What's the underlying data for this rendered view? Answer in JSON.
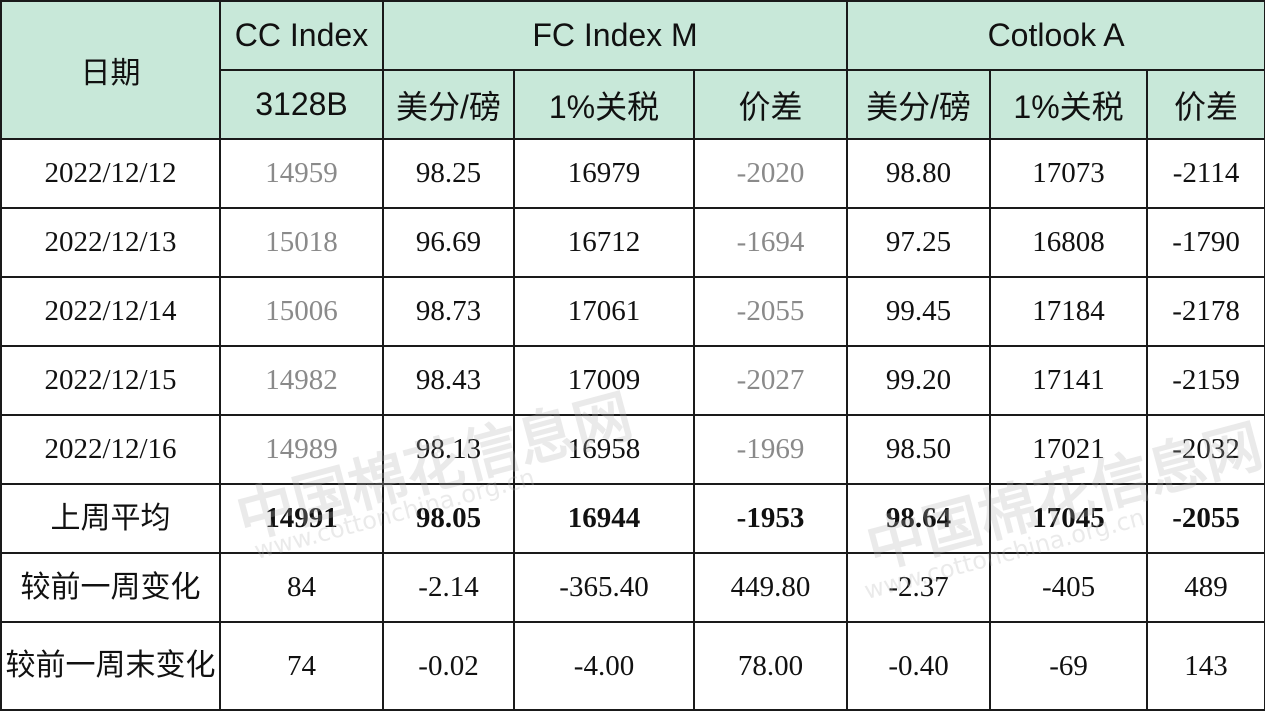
{
  "header": {
    "date": "日期",
    "cc_index": "CC Index",
    "cc_sub": "3128B",
    "fc_index": "FC Index M",
    "cotlook": "Cotlook A",
    "usd_per_lb": "美分/磅",
    "tariff_1pct": "1%关税",
    "spread": "价差"
  },
  "rows": [
    {
      "date": "2022/12/12",
      "cc": "14959",
      "fc_usd": "98.25",
      "fc_tariff": "16979",
      "fc_spread": "-2020",
      "ca_usd": "98.80",
      "ca_tariff": "17073",
      "ca_spread": "-2114"
    },
    {
      "date": "2022/12/13",
      "cc": "15018",
      "fc_usd": "96.69",
      "fc_tariff": "16712",
      "fc_spread": "-1694",
      "ca_usd": "97.25",
      "ca_tariff": "16808",
      "ca_spread": "-1790"
    },
    {
      "date": "2022/12/14",
      "cc": "15006",
      "fc_usd": "98.73",
      "fc_tariff": "17061",
      "fc_spread": "-2055",
      "ca_usd": "99.45",
      "ca_tariff": "17184",
      "ca_spread": "-2178"
    },
    {
      "date": "2022/12/15",
      "cc": "14982",
      "fc_usd": "98.43",
      "fc_tariff": "17009",
      "fc_spread": "-2027",
      "ca_usd": "99.20",
      "ca_tariff": "17141",
      "ca_spread": "-2159"
    },
    {
      "date": "2022/12/16",
      "cc": "14989",
      "fc_usd": "98.13",
      "fc_tariff": "16958",
      "fc_spread": "-1969",
      "ca_usd": "98.50",
      "ca_tariff": "17021",
      "ca_spread": "-2032"
    }
  ],
  "avg": {
    "label": "上周平均",
    "cc": "14991",
    "fc_usd": "98.05",
    "fc_tariff": "16944",
    "fc_spread": "-1953",
    "ca_usd": "98.64",
    "ca_tariff": "17045",
    "ca_spread": "-2055"
  },
  "chg_week": {
    "label": "较前一周变化",
    "cc": "84",
    "fc_usd": "-2.14",
    "fc_tariff": "-365.40",
    "fc_spread": "449.80",
    "ca_usd": "-2.37",
    "ca_tariff": "-405",
    "ca_spread": "489"
  },
  "chg_weekend": {
    "label": "较前一周末变化",
    "cc": "74",
    "fc_usd": "-0.02",
    "fc_tariff": "-4.00",
    "fc_spread": "78.00",
    "ca_usd": "-0.40",
    "ca_tariff": "-69",
    "ca_spread": "143"
  },
  "watermark": {
    "cn": "中国棉花信息网",
    "url": "www.cottonchina.org.cn"
  },
  "colors": {
    "header_bg": "#c8e8d9",
    "border": "#1a1a1a",
    "muted_text": "#8a8a8a"
  }
}
